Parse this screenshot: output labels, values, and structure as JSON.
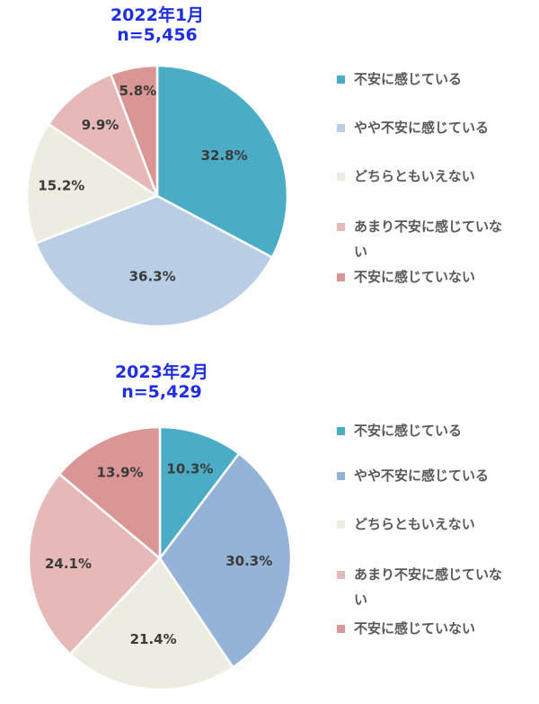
{
  "chart_data": [
    {
      "type": "pie",
      "title": "2022年1月",
      "subtitle": "n=5,456",
      "categories": [
        "不安に感じている",
        "やや不安に感じている",
        "どちらともいえない",
        "あまり不安に感じていない",
        "不安に感じていない"
      ],
      "values": [
        32.8,
        36.3,
        15.2,
        9.9,
        5.8
      ],
      "value_labels": [
        "32.8%",
        "36.3%",
        "15.2%",
        "9.9%",
        "5.8%"
      ],
      "colors": [
        "#4bacc6",
        "#b9cde5",
        "#eeece1",
        "#e6b9b8",
        "#d99694"
      ],
      "legend_position": "right"
    },
    {
      "type": "pie",
      "title": "2023年2月",
      "subtitle": "n=5,429",
      "categories": [
        "不安に感じている",
        "やや不安に感じている",
        "どちらともいえない",
        "あまり不安に感じていない",
        "不安に感じていない"
      ],
      "values": [
        10.3,
        30.3,
        21.4,
        24.1,
        13.9
      ],
      "value_labels": [
        "10.3%",
        "30.3%",
        "21.4%",
        "24.1%",
        "13.9%"
      ],
      "colors": [
        "#4bacc6",
        "#95b3d7",
        "#eeece1",
        "#e6b9b8",
        "#d99694"
      ],
      "legend_position": "right"
    }
  ]
}
